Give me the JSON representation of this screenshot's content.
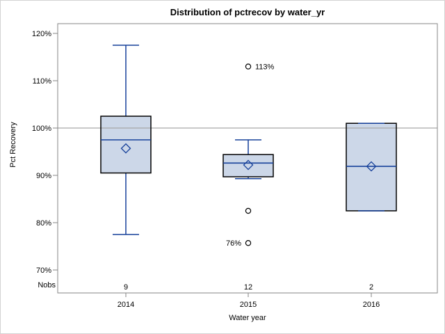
{
  "title": "Distribution of pctrecov by water_yr",
  "y_axis": {
    "title": "Pct Recovery",
    "tick_values": [
      120,
      110,
      100,
      90,
      80,
      70
    ],
    "tick_labels": [
      "120%",
      "110%",
      "100%",
      "90%",
      "80%",
      "70%"
    ]
  },
  "x_axis": {
    "title": "Water year",
    "tick_labels": [
      "2014",
      "2015",
      "2016"
    ]
  },
  "nobs": {
    "label": "Nobs",
    "values": [
      "9",
      "12",
      "2"
    ]
  },
  "chart_data": {
    "type": "boxplot",
    "title": "Distribution of pctrecov by water_yr",
    "xlabel": "Water year",
    "ylabel": "Pct Recovery",
    "categories": [
      "2014",
      "2015",
      "2016"
    ],
    "ylim": [
      65,
      122.5
    ],
    "y_ticks": [
      70,
      80,
      90,
      100,
      110,
      120
    ],
    "y_tick_unit": "percent",
    "reference_line": 100,
    "grid": false,
    "legend": "none",
    "nobs": [
      9,
      12,
      2
    ],
    "series": [
      {
        "category": "2014",
        "nobs": 9,
        "whisker_low": 77.5,
        "q1": 90.5,
        "median": 97.5,
        "mean": 95.7,
        "q3": 102.5,
        "whisker_high": 117.5,
        "outliers": []
      },
      {
        "category": "2015",
        "nobs": 12,
        "whisker_low": 89.3,
        "q1": 89.7,
        "median": 92.6,
        "mean": 92.2,
        "q3": 94.4,
        "whisker_high": 97.5,
        "outliers": [
          {
            "value": 113,
            "label": "113%",
            "label_side": "right"
          },
          {
            "value": 82.5,
            "label": "",
            "label_side": "none"
          },
          {
            "value": 75.7,
            "label": "76%",
            "label_side": "left"
          }
        ]
      },
      {
        "category": "2016",
        "nobs": 2,
        "whisker_low": 82.5,
        "q1": 82.5,
        "median": 91.9,
        "mean": 91.9,
        "q3": 101,
        "whisker_high": 101,
        "outliers": []
      }
    ]
  },
  "colors": {
    "box_fill": "#ccd7e8",
    "box_edge": "#000000",
    "blue_line": "#16409a",
    "outlier": "#000000",
    "reference_line": "#a6a6a6",
    "frame": "#868686",
    "outer_border": "#d3d3d3",
    "text": "#000000"
  }
}
